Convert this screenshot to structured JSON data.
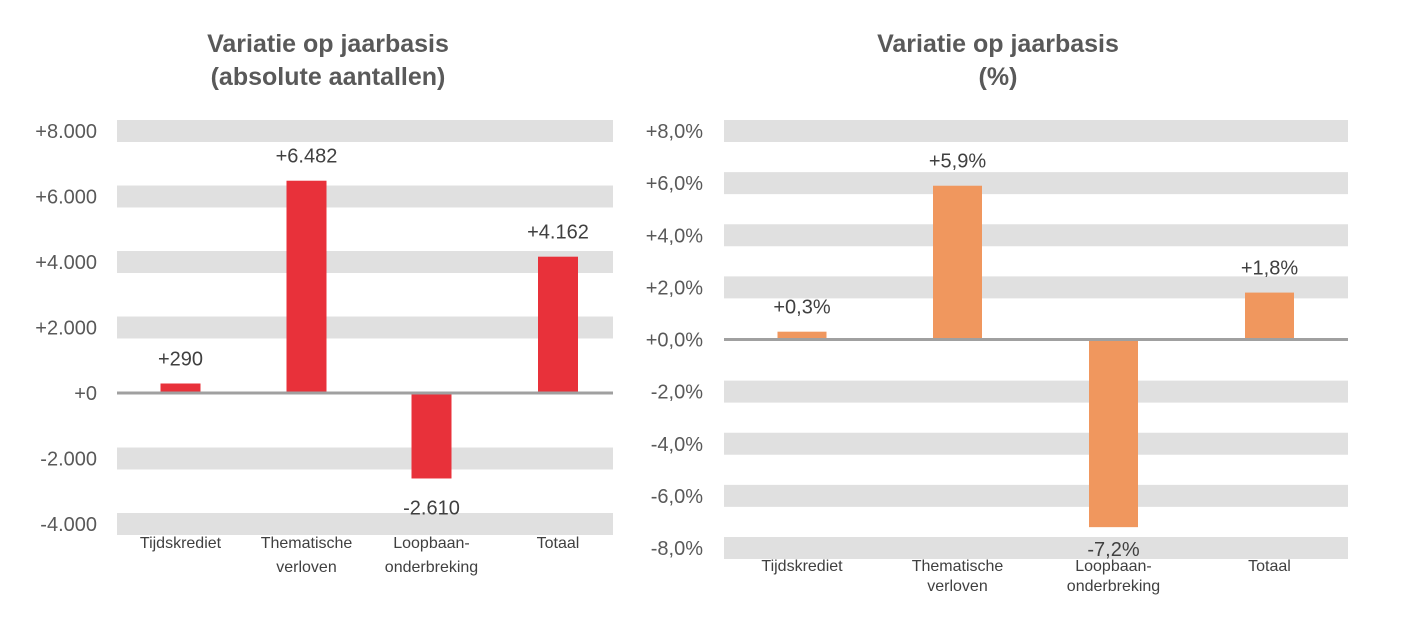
{
  "chart_data": [
    {
      "type": "bar",
      "title": [
        "Variatie op jaarbasis",
        "(absolute aantallen)"
      ],
      "categories": [
        [
          "Tijdskrediet"
        ],
        [
          "Thematische",
          "verloven"
        ],
        [
          "Loopbaan-",
          "onderbreking"
        ],
        [
          "Totaal"
        ]
      ],
      "values": [
        290,
        6482,
        -2610,
        4162
      ],
      "data_labels": [
        "+290",
        "+6.482",
        "-2.610",
        "+4.162"
      ],
      "ylim": [
        -4000,
        8000
      ],
      "yticks": [
        8000,
        6000,
        4000,
        2000,
        0,
        -2000,
        -4000
      ],
      "ytick_labels": [
        "+8.000",
        "+6.000",
        "+4.000",
        "+2.000",
        "+0",
        "-2.000",
        "-4.000"
      ],
      "grid": "alternating bands",
      "color": "#e8313a"
    },
    {
      "type": "bar",
      "title": [
        "Variatie op jaarbasis",
        "(%)"
      ],
      "categories": [
        [
          "Tijdskrediet"
        ],
        [
          "Thematische",
          "verloven"
        ],
        [
          "Loopbaan-",
          "onderbreking"
        ],
        [
          "Totaal"
        ]
      ],
      "values": [
        0.3,
        5.9,
        -7.2,
        1.8
      ],
      "data_labels": [
        "+0,3%",
        "+5,9%",
        "-7,2%",
        "+1,8%"
      ],
      "ylim": [
        -8,
        8
      ],
      "yticks": [
        8,
        6,
        4,
        2,
        0,
        -2,
        -4,
        -6,
        -8
      ],
      "ytick_labels": [
        "+8,0%",
        "+6,0%",
        "+4,0%",
        "+2,0%",
        "+0,0%",
        "-2,0%",
        "-4,0%",
        "-6,0%",
        "-8,0%"
      ],
      "grid": "alternating bands",
      "color": "#f0975e"
    }
  ]
}
